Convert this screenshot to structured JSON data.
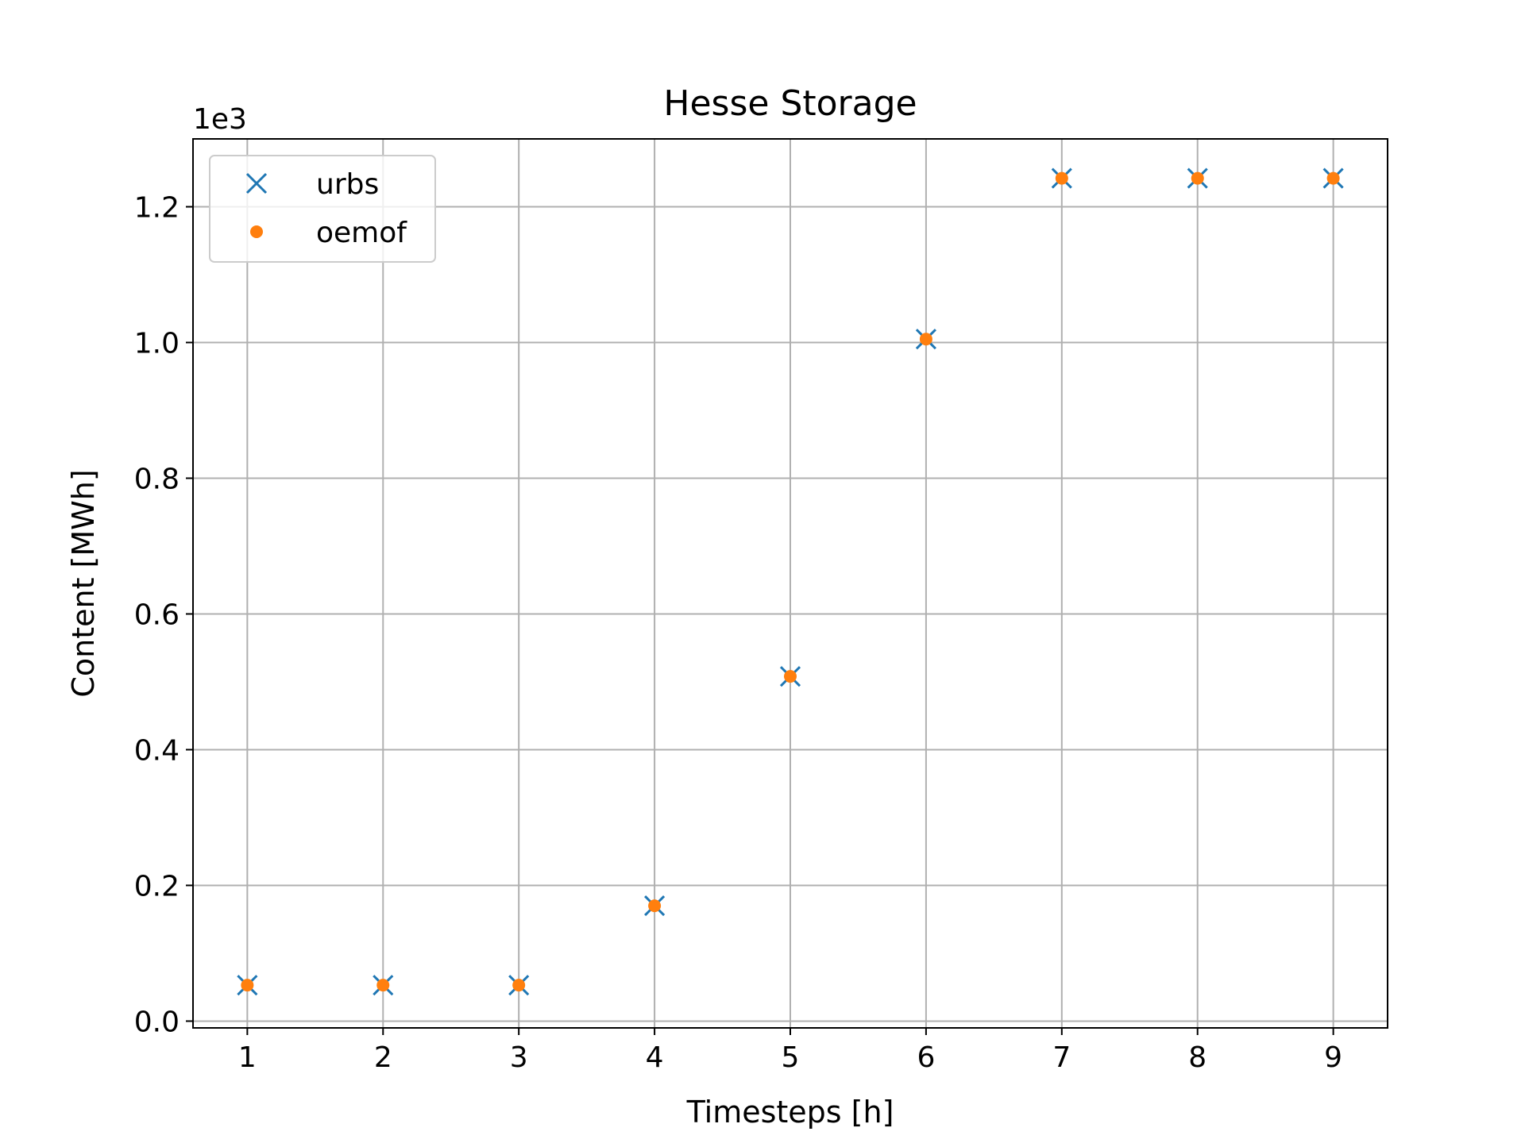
{
  "chart_data": {
    "type": "scatter",
    "title": "Hesse Storage",
    "xlabel": "Timesteps [h]",
    "ylabel": "Content [MWh]",
    "y_offset_label": "1e3",
    "x_ticks": [
      "1",
      "2",
      "3",
      "4",
      "5",
      "6",
      "7",
      "8",
      "9"
    ],
    "y_ticks": [
      "0.0",
      "0.2",
      "0.4",
      "0.6",
      "0.8",
      "1.0",
      "1.2"
    ],
    "xlim": [
      0.6,
      9.4
    ],
    "ylim": [
      -10,
      1300
    ],
    "grid": true,
    "legend_position": "top-left",
    "series": [
      {
        "name": "urbs",
        "marker": "x",
        "color": "#1f77b4",
        "x": [
          1,
          2,
          3,
          4,
          5,
          6,
          7,
          8,
          9
        ],
        "y": [
          53,
          53,
          53,
          170,
          508,
          1005,
          1242,
          1242,
          1242
        ]
      },
      {
        "name": "oemof",
        "marker": "dot",
        "color": "#ff7f0e",
        "x": [
          1,
          2,
          3,
          4,
          5,
          6,
          7,
          8,
          9
        ],
        "y": [
          53,
          53,
          53,
          170,
          508,
          1005,
          1242,
          1242,
          1242
        ]
      }
    ]
  }
}
